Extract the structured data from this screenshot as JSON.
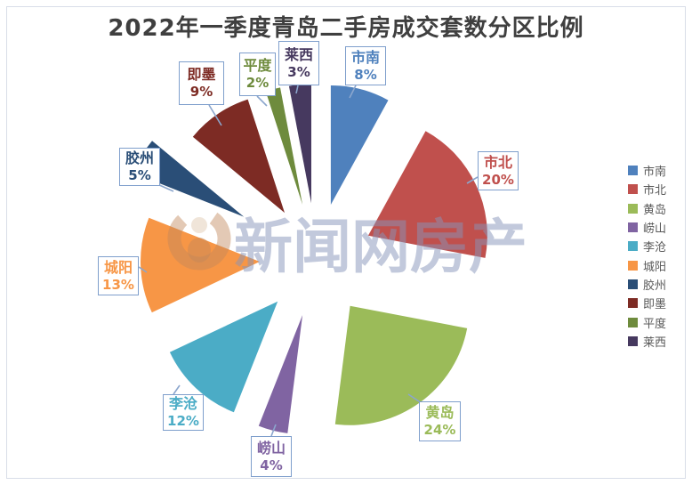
{
  "title": "2022年一季度青岛二手房成交套数分区比例",
  "watermark": {
    "text": "新闻网房产",
    "logo": "person-in-circle-logo"
  },
  "chart_data": {
    "type": "pie",
    "title": "2022年一季度青岛二手房成交套数分区比例",
    "categories": [
      "市南",
      "市北",
      "黄岛",
      "崂山",
      "李沧",
      "城阳",
      "胶州",
      "即墨",
      "平度",
      "莱西"
    ],
    "values": [
      8,
      20,
      24,
      4,
      12,
      13,
      5,
      9,
      2,
      3
    ],
    "labels": [
      "8%",
      "20%",
      "24%",
      "4%",
      "12%",
      "13%",
      "5%",
      "9%",
      "2%",
      "3%"
    ],
    "unit": "percent",
    "colors": [
      "#4f81bd",
      "#c0504d",
      "#9bbb59",
      "#8064a2",
      "#4bacc6",
      "#f79646",
      "#2a4e77",
      "#7d2b24",
      "#6e8b3d",
      "#46395f"
    ],
    "start_angle_deg": 0,
    "direction": "clockwise",
    "exploded": true,
    "legend_position": "right",
    "legend_items": [
      "市南",
      "市北",
      "黄岛",
      "崂山",
      "李沧",
      "城阳",
      "胶州",
      "即墨",
      "平度",
      "莱西"
    ]
  }
}
